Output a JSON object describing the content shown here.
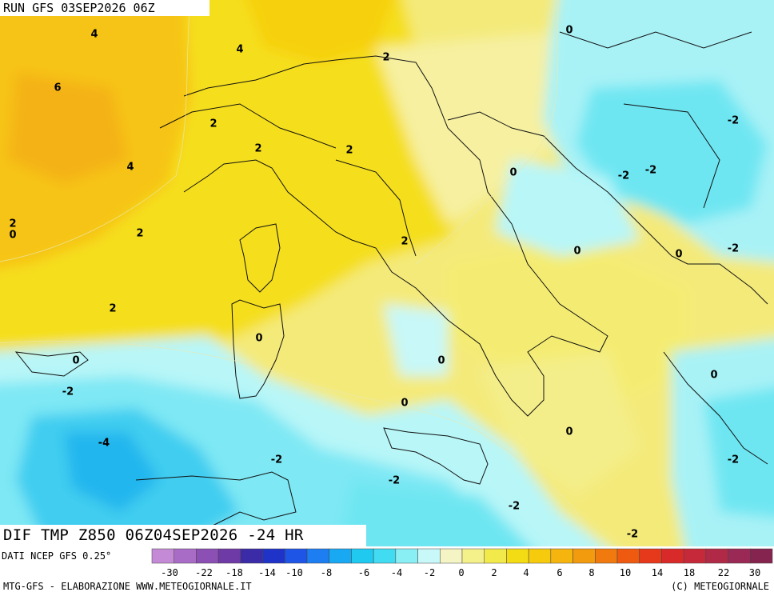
{
  "header": {
    "run_label": "RUN GFS 03SEP2026 06Z"
  },
  "map": {
    "title": "DIF TMP Z850 06Z04SEP2026 -24 HR",
    "source": "DATI NCEP GFS 0.25°",
    "edge_ticks": [
      "4",
      "6",
      "4"
    ],
    "contour_labels": [
      "4",
      "4",
      "6",
      "2",
      "2",
      "2",
      "4",
      "2",
      "2",
      "2",
      "0",
      "0",
      "-2",
      "-2",
      "0",
      "-2",
      "0",
      "-2",
      "2",
      "0",
      "0",
      "0",
      "0",
      "0",
      "0",
      "-2",
      "-4",
      "-2",
      "-2",
      "-2",
      "-2",
      "-2",
      "2",
      "0",
      "6",
      "4"
    ]
  },
  "legend": {
    "values": [
      "-30",
      "-22",
      "-18",
      "-14",
      "-10",
      "-8",
      "-6",
      "-4",
      "-2",
      "0",
      "2",
      "4",
      "6",
      "8",
      "10",
      "14",
      "18",
      "22",
      "30"
    ],
    "colors": [
      "#c58ad6",
      "#a86cc7",
      "#8c4fb4",
      "#6e3aa6",
      "#3b2ba6",
      "#1f33c9",
      "#1f55e6",
      "#1c7ef0",
      "#19a8f2",
      "#1fc9f0",
      "#42dcf2",
      "#8aeef5",
      "#c8f8f8",
      "#f4f4c4",
      "#f4f08a",
      "#f2ea4a",
      "#f4dc14",
      "#f6cb0e",
      "#f6b40e",
      "#f29b0e",
      "#f07a0e",
      "#ee5a10",
      "#e6381a",
      "#d92a2a",
      "#c62a3a",
      "#b02a48",
      "#9a2a55",
      "#85244f"
    ],
    "swatch_colors_note": ""
  },
  "footer": {
    "left": "MTG-GFS - ELABORAZIONE WWW.METEOGIORNALE.IT",
    "right": "(C) METEOGIORNALE"
  }
}
